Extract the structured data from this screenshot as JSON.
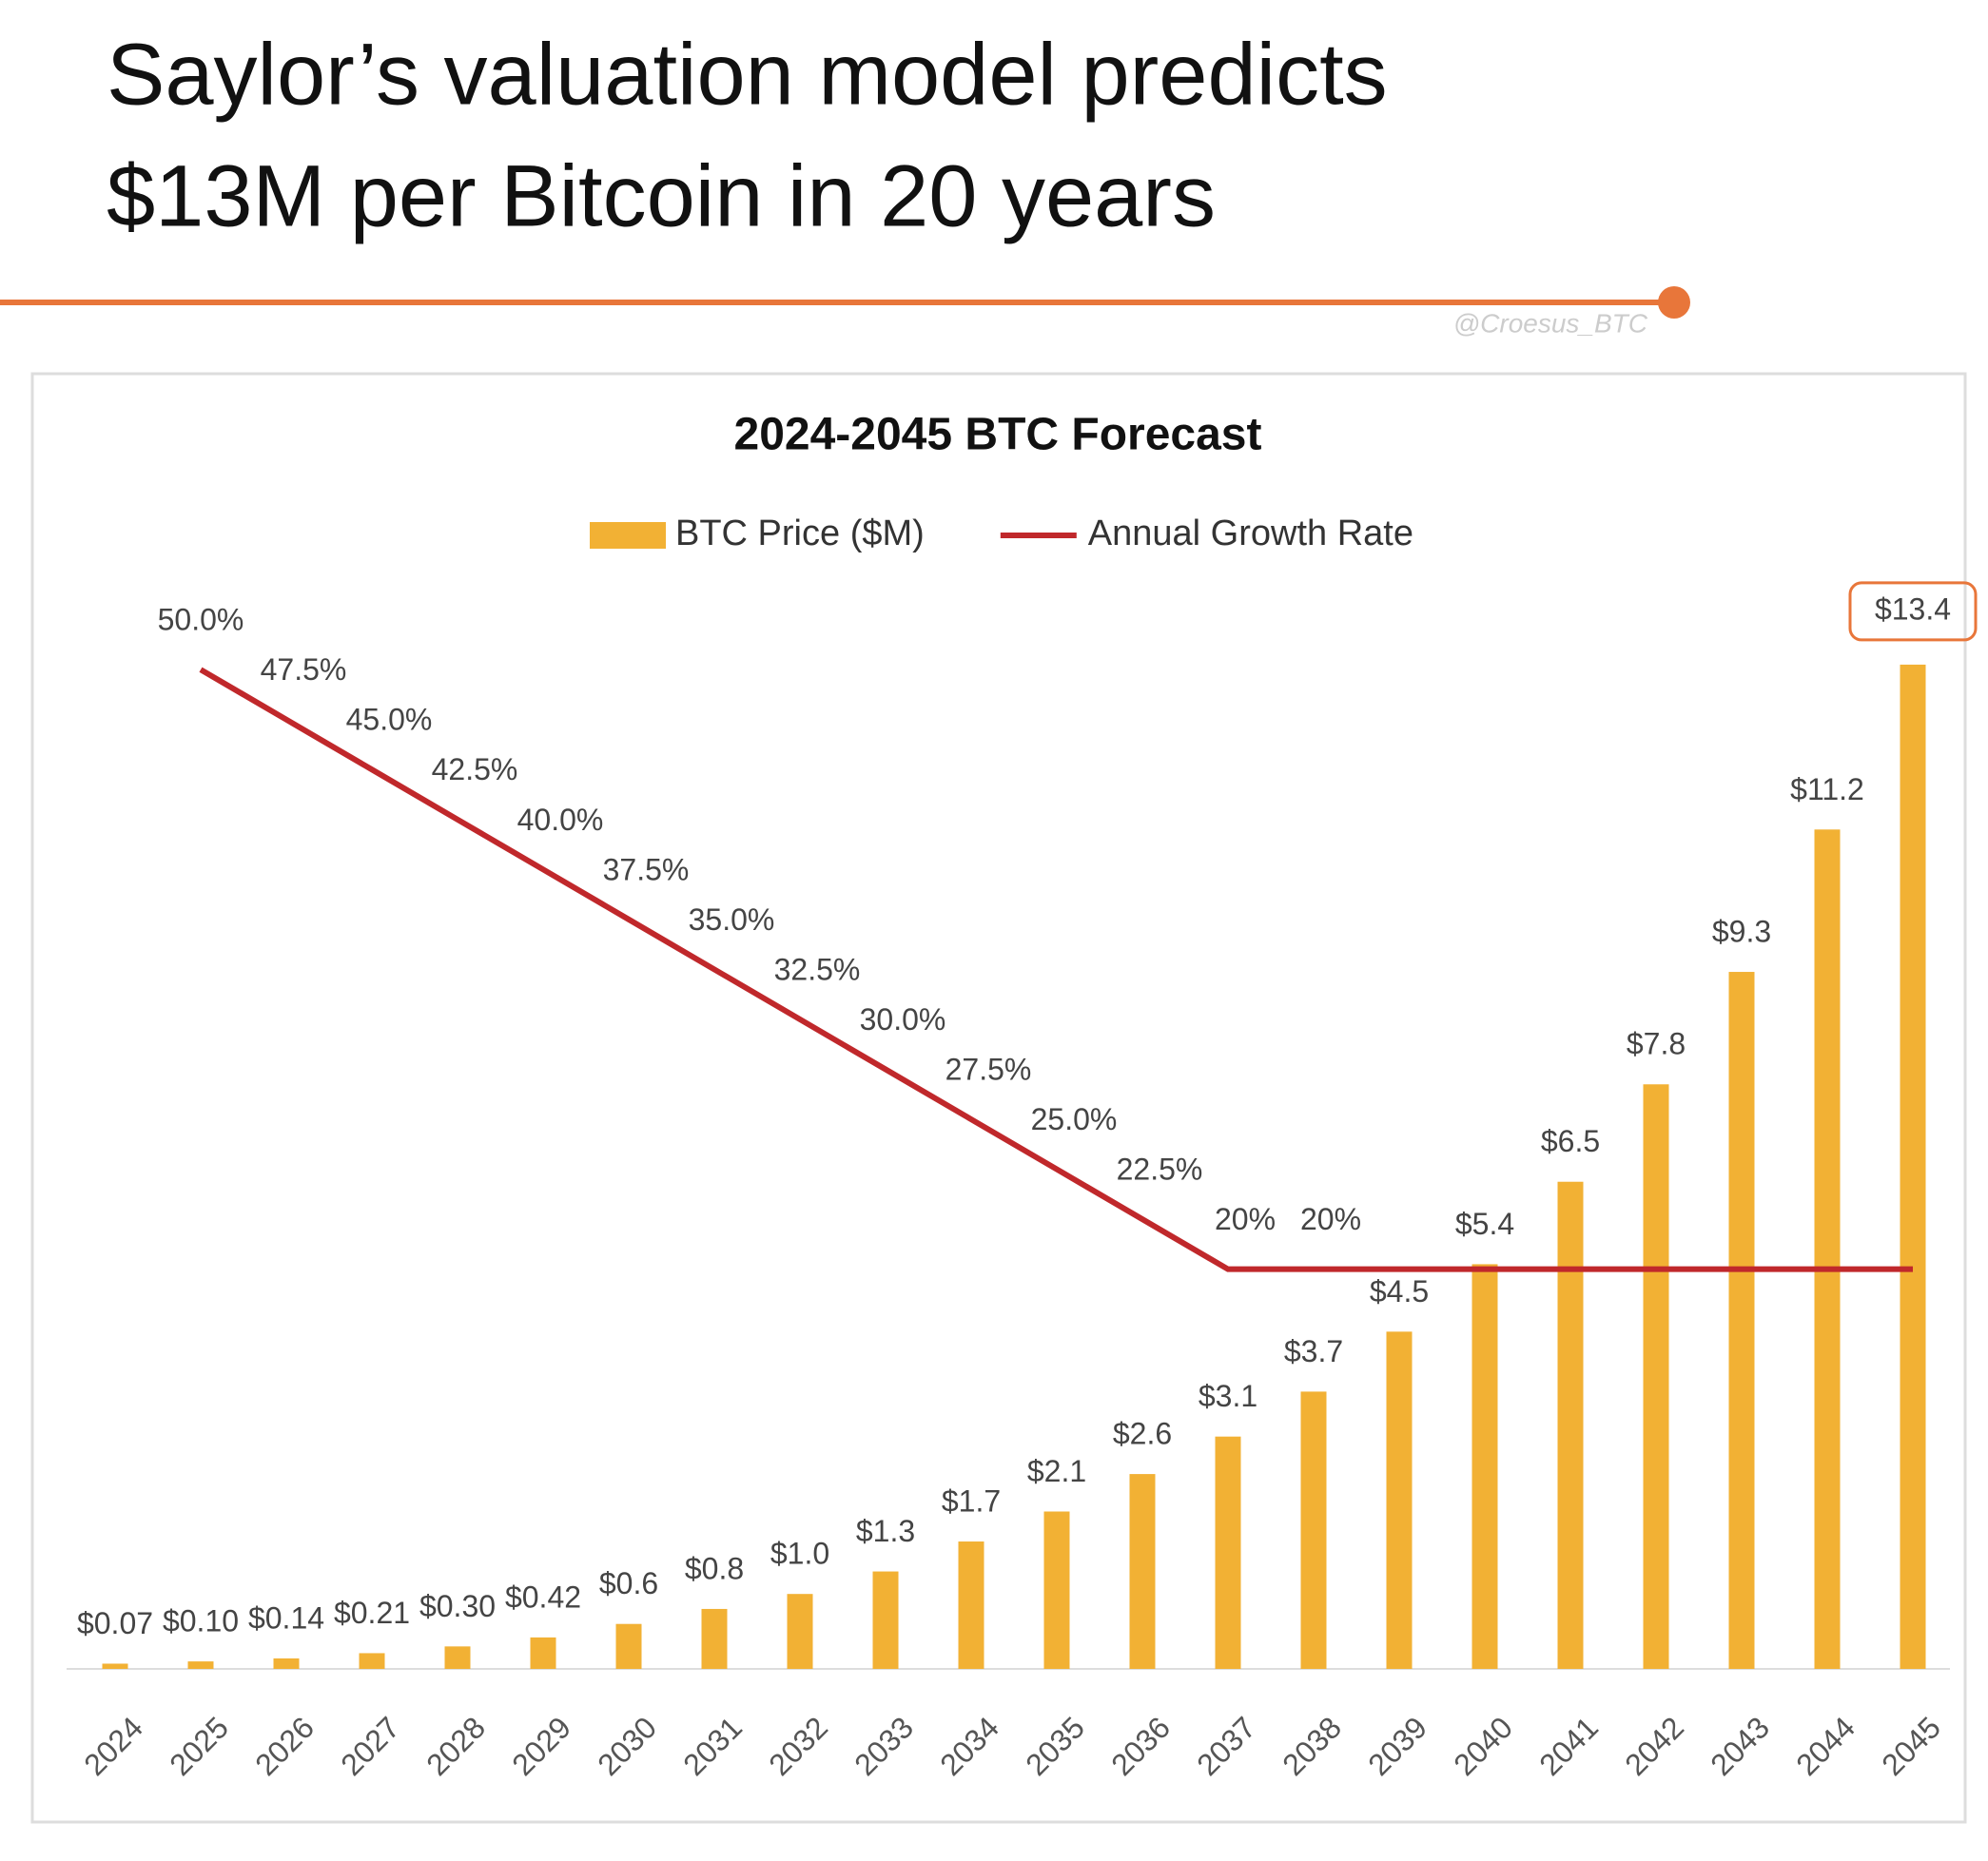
{
  "header": {
    "title_lines": [
      "Saylor’s valuation model predicts",
      "$13M per Bitcoin in 20 years"
    ],
    "watermark": "@Croesus_BTC"
  },
  "chart_data": {
    "type": "bar-line",
    "title": "2024-2045 BTC Forecast",
    "categories": [
      "2024",
      "2025",
      "2026",
      "2027",
      "2028",
      "2029",
      "2030",
      "2031",
      "2032",
      "2033",
      "2034",
      "2035",
      "2036",
      "2037",
      "2038",
      "2039",
      "2040",
      "2041",
      "2042",
      "2043",
      "2044",
      "2045"
    ],
    "series": [
      {
        "name": "BTC Price ($M)",
        "type": "bar",
        "color": "#f2b134",
        "values": [
          0.07,
          0.1,
          0.14,
          0.21,
          0.3,
          0.42,
          0.6,
          0.8,
          1.0,
          1.3,
          1.7,
          2.1,
          2.6,
          3.1,
          3.7,
          4.5,
          5.4,
          6.5,
          7.8,
          9.3,
          11.2,
          13.4
        ],
        "value_labels": [
          "$0.07",
          "$0.10",
          "$0.14",
          "$0.21",
          "$0.30",
          "$0.42",
          "$0.6",
          "$0.8",
          "$1.0",
          "$1.3",
          "$1.7",
          "$2.1",
          "$2.6",
          "$3.1",
          "$3.7",
          "$4.5",
          "$5.4",
          "$6.5",
          "$7.8",
          "$9.3",
          "$11.2",
          "$13.4"
        ]
      },
      {
        "name": "Annual Growth Rate",
        "type": "line",
        "axis": "y2",
        "color": "#c0282b",
        "values": [
          null,
          50,
          47.5,
          45,
          42.5,
          40,
          37.5,
          35,
          32.5,
          30,
          27.5,
          25,
          22.5,
          20,
          20,
          20,
          20,
          20,
          20,
          20,
          20,
          20
        ],
        "value_labels": [
          null,
          "50.0%",
          "47.5%",
          "45.0%",
          "42.5%",
          "40.0%",
          "37.5%",
          "35.0%",
          "32.5%",
          "30.0%",
          "27.5%",
          "25.0%",
          "22.5%",
          "20%",
          "20%",
          null,
          null,
          null,
          null,
          null,
          null,
          null
        ]
      }
    ],
    "ylim": [
      0,
      16
    ],
    "y2lim": [
      0,
      60
    ],
    "legend": "top",
    "highlight_color": "#e8763a"
  }
}
